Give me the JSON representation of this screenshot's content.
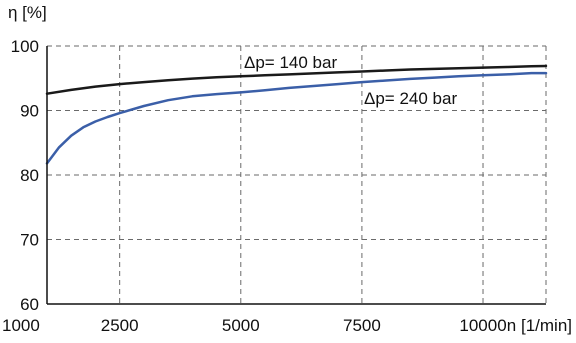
{
  "chart_data": {
    "type": "line",
    "xlabel": "n [1/min]",
    "ylabel": "η [%]",
    "xlim": [
      1000,
      11300
    ],
    "ylim": [
      60,
      100
    ],
    "grid": true,
    "x_ticks": [
      1000,
      2500,
      5000,
      7500,
      10000
    ],
    "y_ticks": [
      60,
      70,
      80,
      90,
      100
    ],
    "x_tick_labels": [
      "1000",
      "2500",
      "5000",
      "7500",
      "10000"
    ],
    "y_tick_labels": [
      "60",
      "70",
      "80",
      "90",
      "100"
    ],
    "series": [
      {
        "name": "Δp= 140 bar",
        "color": "#1a1a1a",
        "x": [
          1000,
          1500,
          2000,
          2500,
          3000,
          3500,
          4000,
          4500,
          5000,
          5500,
          6000,
          6500,
          7000,
          7500,
          8000,
          8500,
          9000,
          9500,
          10000,
          10500,
          11000,
          11300
        ],
        "y": [
          92.6,
          93.2,
          93.7,
          94.1,
          94.4,
          94.7,
          94.95,
          95.15,
          95.3,
          95.45,
          95.6,
          95.75,
          95.9,
          96.05,
          96.2,
          96.35,
          96.45,
          96.55,
          96.65,
          96.75,
          96.85,
          96.9
        ]
      },
      {
        "name": "Δp= 240 bar",
        "color": "#3b5fa8",
        "x": [
          1000,
          1250,
          1500,
          1750,
          2000,
          2250,
          2500,
          3000,
          3500,
          4000,
          4500,
          5000,
          5500,
          6000,
          6500,
          7000,
          7500,
          8000,
          8500,
          9000,
          9500,
          10000,
          10500,
          11000,
          11300
        ],
        "y": [
          81.8,
          84.3,
          86.1,
          87.4,
          88.3,
          89.0,
          89.6,
          90.7,
          91.6,
          92.2,
          92.55,
          92.8,
          93.15,
          93.5,
          93.8,
          94.1,
          94.4,
          94.65,
          94.9,
          95.1,
          95.3,
          95.45,
          95.6,
          95.8,
          95.8
        ]
      }
    ]
  }
}
